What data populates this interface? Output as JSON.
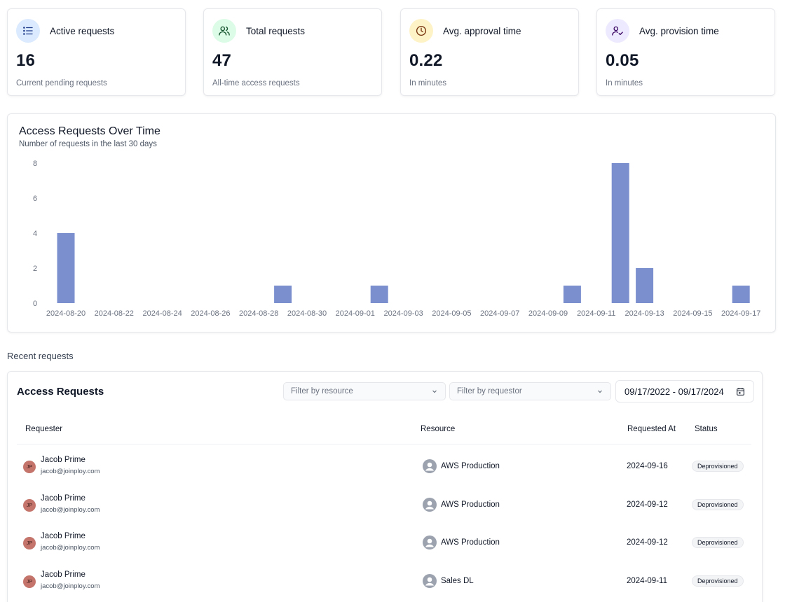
{
  "stats": [
    {
      "title": "Active requests",
      "value": "16",
      "subtitle": "Current pending requests",
      "icon": "list-icon",
      "icon_bg": "#dbeafe",
      "icon_color": "#1e3a8a"
    },
    {
      "title": "Total requests",
      "value": "47",
      "subtitle": "All-time access requests",
      "icon": "users-icon",
      "icon_bg": "#dcfce7",
      "icon_color": "#14532d"
    },
    {
      "title": "Avg. approval time",
      "value": "0.22",
      "subtitle": "In minutes",
      "icon": "clock-icon",
      "icon_bg": "#fef3c7",
      "icon_color": "#78350f"
    },
    {
      "title": "Avg. provision time",
      "value": "0.05",
      "subtitle": "In minutes",
      "icon": "user-check-icon",
      "icon_bg": "#ede9fe",
      "icon_color": "#3b0764"
    }
  ],
  "chart": {
    "title": "Access Requests Over Time",
    "subtitle": "Number of requests in the last 30 days"
  },
  "chart_data": {
    "type": "bar",
    "bar_color": "#7b8fcf",
    "categories": [
      "2024-08-20",
      "2024-08-21",
      "2024-08-22",
      "2024-08-23",
      "2024-08-24",
      "2024-08-25",
      "2024-08-26",
      "2024-08-27",
      "2024-08-28",
      "2024-08-29",
      "2024-08-30",
      "2024-08-31",
      "2024-09-01",
      "2024-09-02",
      "2024-09-03",
      "2024-09-04",
      "2024-09-05",
      "2024-09-06",
      "2024-09-07",
      "2024-09-08",
      "2024-09-09",
      "2024-09-10",
      "2024-09-11",
      "2024-09-12",
      "2024-09-13",
      "2024-09-14",
      "2024-09-15",
      "2024-09-16",
      "2024-09-17"
    ],
    "values": [
      4,
      0,
      0,
      0,
      0,
      0,
      0,
      0,
      0,
      1,
      0,
      0,
      0,
      1,
      0,
      0,
      0,
      0,
      0,
      0,
      0,
      1,
      0,
      8,
      2,
      0,
      0,
      0,
      1
    ],
    "x_tick_labels": [
      "2024-08-20",
      "2024-08-22",
      "2024-08-24",
      "2024-08-26",
      "2024-08-28",
      "2024-08-30",
      "2024-09-01",
      "2024-09-03",
      "2024-09-05",
      "2024-09-07",
      "2024-09-09",
      "2024-09-11",
      "2024-09-13",
      "2024-09-15",
      "2024-09-17"
    ],
    "y_ticks": [
      0,
      2,
      4,
      6,
      8
    ],
    "ylim": [
      0,
      8
    ],
    "grid": false
  },
  "recent": {
    "section_label": "Recent requests",
    "table_title": "Access Requests",
    "filter_resource_placeholder": "Filter by resource",
    "filter_requestor_placeholder": "Filter by requestor",
    "date_range": "09/17/2022 - 09/17/2024",
    "columns": {
      "requester": "Requester",
      "resource": "Resource",
      "requested_at": "Requested At",
      "status": "Status"
    },
    "rows": [
      {
        "initials": "JP",
        "name": "Jacob Prime",
        "email": "jacob@joinploy.com",
        "resource": "AWS Production",
        "requested_at": "2024-09-16",
        "status": "Deprovisioned"
      },
      {
        "initials": "JP",
        "name": "Jacob Prime",
        "email": "jacob@joinploy.com",
        "resource": "AWS Production",
        "requested_at": "2024-09-12",
        "status": "Deprovisioned"
      },
      {
        "initials": "JP",
        "name": "Jacob Prime",
        "email": "jacob@joinploy.com",
        "resource": "AWS Production",
        "requested_at": "2024-09-12",
        "status": "Deprovisioned"
      },
      {
        "initials": "JP",
        "name": "Jacob Prime",
        "email": "jacob@joinploy.com",
        "resource": "Sales DL",
        "requested_at": "2024-09-11",
        "status": "Deprovisioned"
      }
    ]
  }
}
